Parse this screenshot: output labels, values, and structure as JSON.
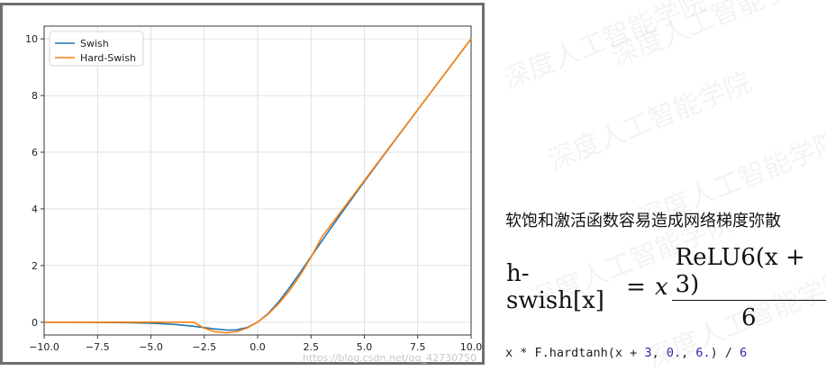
{
  "chart_data": {
    "type": "line",
    "xlim": [
      -10,
      10
    ],
    "ylim": [
      -0.45,
      10.45
    ],
    "grid": true,
    "legend_position": "top-left",
    "xticks": [
      "−10.0",
      "−7.5",
      "−5.0",
      "−2.5",
      "0.0",
      "2.5",
      "5.0",
      "7.5",
      "10.0"
    ],
    "xtick_values": [
      -10,
      -7.5,
      -5,
      -2.5,
      0,
      2.5,
      5,
      7.5,
      10
    ],
    "yticks": [
      "0",
      "2",
      "4",
      "6",
      "8",
      "10"
    ],
    "ytick_values": [
      0,
      2,
      4,
      6,
      8,
      10
    ],
    "series": [
      {
        "name": "Swish",
        "color": "#1f77b4",
        "x": [
          -10,
          -8,
          -6,
          -5,
          -4,
          -3,
          -2.5,
          -2,
          -1.5,
          -1.278,
          -1,
          -0.5,
          0,
          0.5,
          1,
          1.5,
          2,
          2.5,
          3,
          3.5,
          4,
          5,
          6,
          7,
          8,
          9,
          10
        ],
        "y": [
          -0.0005,
          -0.0027,
          -0.0148,
          -0.0335,
          -0.0719,
          -0.1423,
          -0.1892,
          -0.2384,
          -0.2736,
          -0.2785,
          -0.2689,
          -0.1888,
          0,
          0.3112,
          0.7311,
          1.2264,
          1.7616,
          2.3108,
          2.8577,
          3.3954,
          3.9281,
          4.9665,
          5.9852,
          6.9936,
          7.9973,
          8.999,
          9.9995
        ]
      },
      {
        "name": "Hard-Swish",
        "color": "#ff7f0e",
        "x": [
          -10,
          -3,
          -2.5,
          -2,
          -1.5,
          -1,
          -0.5,
          0,
          0.5,
          1,
          1.5,
          2,
          2.5,
          3,
          4,
          5,
          6,
          7,
          8,
          9,
          10
        ],
        "y": [
          0,
          0,
          -0.2083,
          -0.3333,
          -0.375,
          -0.3333,
          -0.2083,
          0,
          0.2917,
          0.6667,
          1.125,
          1.6667,
          2.2917,
          3,
          4,
          5,
          6,
          7,
          8,
          9,
          10
        ]
      }
    ]
  },
  "watermark_url": "https://blog.csdn.net/qq_42730750",
  "side_watermark_text": "深度人工智能学院",
  "caption": "软饱和激活函数容易造成网络梯度弥散",
  "formula": {
    "lhs": "h-swish[x]",
    "eq": "=",
    "x": "x",
    "numerator": "ReLU6(x + 3)",
    "denominator": "6"
  },
  "code": {
    "part1": "x * F.hardtanh(x + ",
    "n1": "3",
    "part2": ", ",
    "n2": "0.",
    "part3": ", ",
    "n3": "6.",
    "part4": ") / ",
    "n4": "6"
  }
}
